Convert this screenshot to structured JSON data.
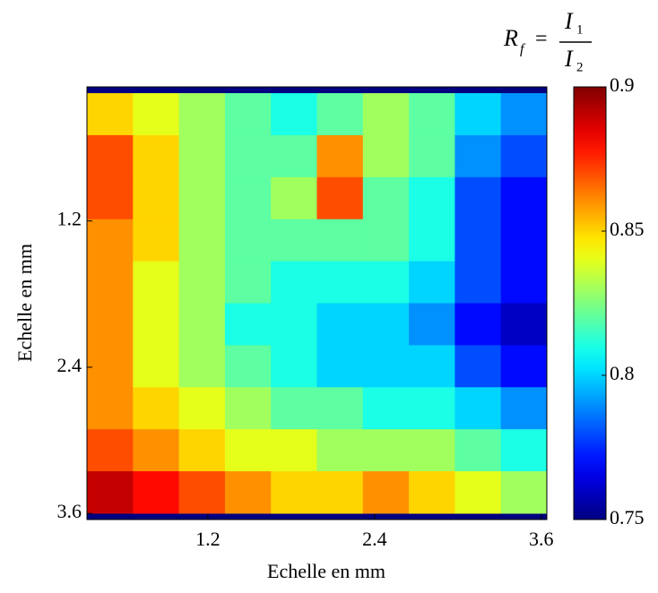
{
  "chart_data": {
    "type": "heatmap",
    "xlabel": "Echelle en mm",
    "ylabel": "Echelle en mm",
    "xlim": [
      0.33,
      3.64
    ],
    "ylim": [
      0.1,
      3.65
    ],
    "y_inverted": true,
    "xticks": [
      1.2,
      2.4,
      3.6
    ],
    "yticks": [
      1.2,
      2.4,
      3.6
    ],
    "colormap": "jet",
    "clim": [
      0.75,
      0.9
    ],
    "cticks": [
      0.75,
      0.8,
      0.85,
      0.9
    ],
    "colorbar_label": {
      "symbol": "R",
      "symbol_sub": "f",
      "equals": "=",
      "numerator": "I",
      "numerator_sub": "1",
      "denominator": "I",
      "denominator_sub": "2"
    },
    "values": [
      [
        0.85,
        0.84,
        0.83,
        0.82,
        0.81,
        0.82,
        0.83,
        0.82,
        0.8,
        0.79
      ],
      [
        0.87,
        0.85,
        0.83,
        0.82,
        0.82,
        0.86,
        0.83,
        0.82,
        0.79,
        0.78
      ],
      [
        0.87,
        0.85,
        0.83,
        0.82,
        0.83,
        0.87,
        0.82,
        0.81,
        0.78,
        0.77
      ],
      [
        0.86,
        0.85,
        0.83,
        0.82,
        0.82,
        0.82,
        0.82,
        0.81,
        0.78,
        0.77
      ],
      [
        0.86,
        0.84,
        0.83,
        0.82,
        0.81,
        0.81,
        0.81,
        0.8,
        0.78,
        0.77
      ],
      [
        0.86,
        0.84,
        0.83,
        0.81,
        0.81,
        0.8,
        0.8,
        0.79,
        0.77,
        0.76
      ],
      [
        0.86,
        0.84,
        0.83,
        0.82,
        0.81,
        0.8,
        0.8,
        0.8,
        0.78,
        0.77
      ],
      [
        0.86,
        0.85,
        0.84,
        0.83,
        0.82,
        0.82,
        0.81,
        0.81,
        0.8,
        0.79
      ],
      [
        0.87,
        0.86,
        0.85,
        0.84,
        0.84,
        0.83,
        0.83,
        0.83,
        0.82,
        0.81
      ],
      [
        0.89,
        0.88,
        0.87,
        0.86,
        0.85,
        0.85,
        0.86,
        0.85,
        0.84,
        0.83
      ]
    ]
  }
}
